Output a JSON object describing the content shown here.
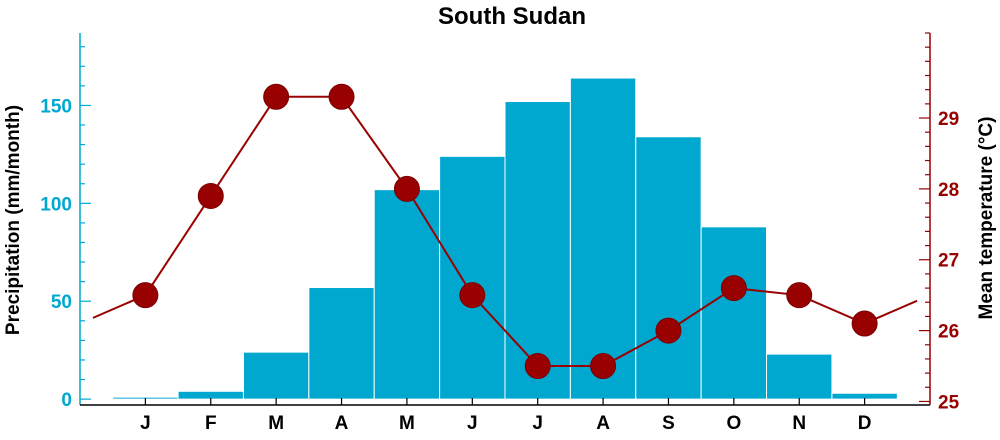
{
  "colors": {
    "precip": "#00a8d0",
    "temp": "#990000",
    "bar_edge": "#ffffff",
    "frame": "#000000"
  },
  "chart_data": {
    "type": "bar+line",
    "title": "South Sudan",
    "categories": [
      "J",
      "F",
      "M",
      "A",
      "M",
      "J",
      "J",
      "A",
      "S",
      "O",
      "N",
      "D"
    ],
    "series": [
      {
        "name": "Precipitation (mm/month)",
        "type": "bar",
        "axis": "left",
        "values": [
          1,
          4,
          24,
          57,
          107,
          124,
          152,
          164,
          134,
          88,
          23,
          3
        ]
      },
      {
        "name": "Mean temperature (°C)",
        "type": "line",
        "axis": "right",
        "values": [
          26.5,
          27.9,
          29.3,
          29.3,
          28.0,
          26.5,
          25.5,
          25.5,
          26.0,
          26.6,
          26.5,
          26.1
        ]
      }
    ],
    "y_left": {
      "label": "Precipitation (mm/month)",
      "range": [
        -3,
        187
      ],
      "ticks": [
        0,
        50,
        100,
        150
      ],
      "minor_step": 10
    },
    "y_right": {
      "label": "Mean temperature (°C)",
      "range": [
        24.95,
        30.2
      ],
      "ticks": [
        25,
        26,
        27,
        28,
        29
      ],
      "minor_step": 0.2
    },
    "grid": false,
    "legend": "none"
  }
}
